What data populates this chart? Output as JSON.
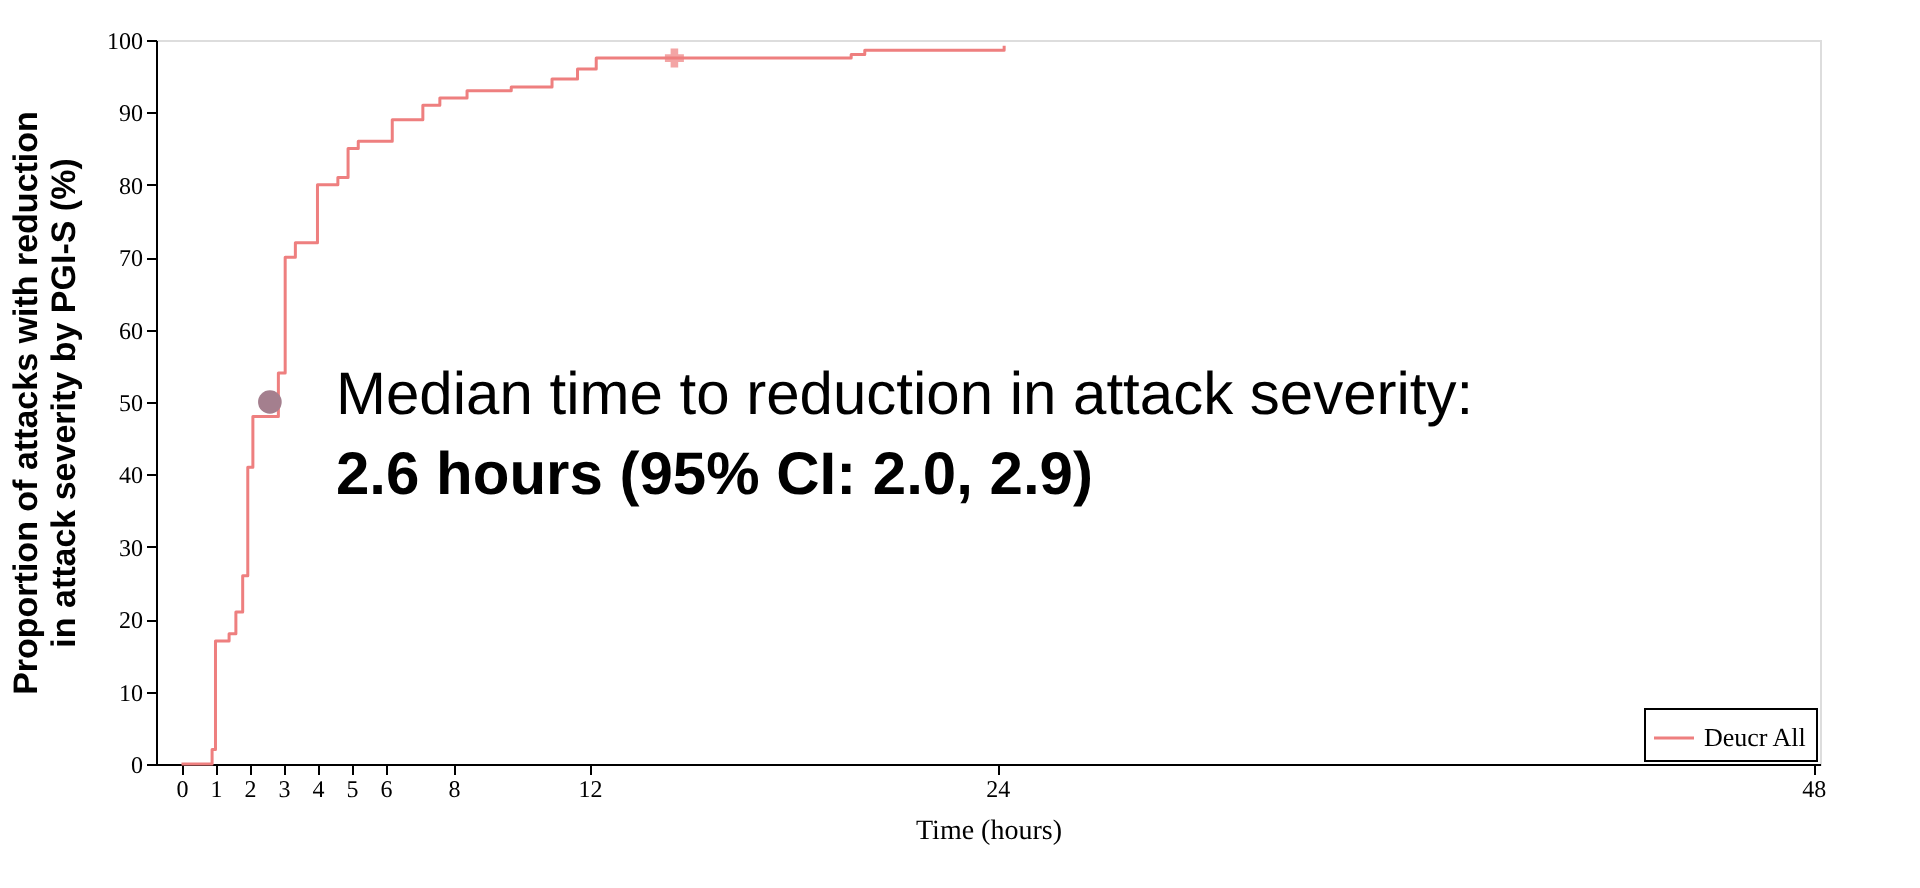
{
  "chart_data": {
    "type": "step",
    "xlabel": "Time (hours)",
    "ylabel": "Proportion of attacks with reduction\nin attack severity by PGI-S (%)",
    "xlim": [
      -0.75,
      48.2
    ],
    "xticks": [
      0,
      1,
      2,
      3,
      4,
      5,
      6,
      8,
      12,
      24,
      48
    ],
    "ylim": [
      0,
      100
    ],
    "yticks": [
      0,
      10,
      20,
      30,
      40,
      50,
      60,
      70,
      80,
      90,
      100
    ],
    "grid": false,
    "legend": "bottom right",
    "series": [
      {
        "name": "Deucr All",
        "color": "#ee7f7f",
        "line_style": "solid",
        "marker": "none",
        "x": [
          0,
          0.8,
          0.9,
          1.0,
          1.4,
          1.6,
          1.8,
          1.95,
          2.1,
          2.85,
          3.05,
          3.35,
          4.0,
          4.6,
          4.9,
          5.2,
          6.2,
          7.1,
          7.6,
          8.4,
          9.7,
          10.9,
          11.65,
          12.2,
          19.7,
          20.1,
          24.0,
          24.2
        ],
        "values": [
          0,
          0,
          2,
          17,
          18,
          21,
          26,
          41,
          48,
          54,
          70,
          72,
          80,
          81,
          85,
          86,
          89,
          91,
          92,
          93,
          93.5,
          94.6,
          96,
          97.5,
          98,
          98.6,
          98.6,
          99.2
        ]
      },
      {
        "type": "scatter",
        "color": "#ee7f7f",
        "marker": "cross",
        "x": [
          14.5
        ],
        "values": [
          97.5
        ]
      },
      {
        "type": "scatter",
        "color": "#a47f8e",
        "marker": "circle",
        "x": [
          2.6
        ],
        "values": [
          50
        ]
      }
    ],
    "annotations": [
      "Median time to reduction in attack severity:",
      "2.6 hours (95% CI: 2.0, 2.9)"
    ]
  }
}
